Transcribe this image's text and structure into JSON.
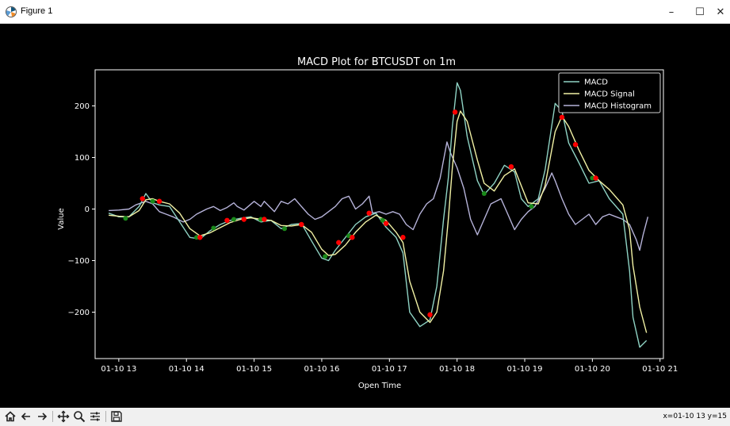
{
  "window": {
    "title": "Figure 1",
    "minimize_glyph": "–",
    "maximize_glyph": "☐",
    "close_glyph": "✕",
    "icon": "matplotlib-figure-icon"
  },
  "toolbar": {
    "buttons": [
      {
        "name": "home-icon"
      },
      {
        "name": "back-arrow-icon"
      },
      {
        "name": "forward-arrow-icon"
      },
      {
        "name": "pan-icon"
      },
      {
        "name": "zoom-icon"
      },
      {
        "name": "configure-subplots-icon"
      },
      {
        "name": "save-icon"
      }
    ],
    "coords": "x=01-10 13 y=15"
  },
  "colors": {
    "macd": "#8fd3c4",
    "signal": "#f2f2a5",
    "histogram": "#b6b3d9",
    "buy_marker": "#1a8a1a",
    "sell_marker": "#ff0000",
    "axes": "#ffffff",
    "background": "#000000"
  },
  "chart_data": {
    "type": "line",
    "title": "MACD Plot for BTCUSDT on 1m",
    "xlabel": "Open Time",
    "ylabel": "Value",
    "xlim": [
      12.65,
      21.05
    ],
    "ylim": [
      -290,
      270
    ],
    "xticks": [
      {
        "value": 13,
        "label": "01-10 13"
      },
      {
        "value": 14,
        "label": "01-10 14"
      },
      {
        "value": 15,
        "label": "01-10 15"
      },
      {
        "value": 16,
        "label": "01-10 16"
      },
      {
        "value": 17,
        "label": "01-10 17"
      },
      {
        "value": 18,
        "label": "01-10 18"
      },
      {
        "value": 19,
        "label": "01-10 19"
      },
      {
        "value": 20,
        "label": "01-10 20"
      },
      {
        "value": 21,
        "label": "01-10 21"
      }
    ],
    "yticks": [
      {
        "value": -200,
        "label": "−200"
      },
      {
        "value": -100,
        "label": "−100"
      },
      {
        "value": 0,
        "label": "0"
      },
      {
        "value": 100,
        "label": "100"
      },
      {
        "value": 200,
        "label": "200"
      }
    ],
    "grid": false,
    "legend_position": "top-right",
    "series": [
      {
        "name": "MACD",
        "color": "#8fd3c4",
        "points": [
          [
            12.85,
            -8
          ],
          [
            13.0,
            -15
          ],
          [
            13.15,
            -15
          ],
          [
            13.3,
            5
          ],
          [
            13.4,
            30
          ],
          [
            13.5,
            12
          ],
          [
            13.6,
            8
          ],
          [
            13.75,
            5
          ],
          [
            13.9,
            -25
          ],
          [
            14.05,
            -55
          ],
          [
            14.2,
            -58
          ],
          [
            14.35,
            -42
          ],
          [
            14.5,
            -30
          ],
          [
            14.65,
            -22
          ],
          [
            14.8,
            -18
          ],
          [
            14.95,
            -15
          ],
          [
            15.1,
            -25
          ],
          [
            15.25,
            -22
          ],
          [
            15.4,
            -38
          ],
          [
            15.55,
            -30
          ],
          [
            15.7,
            -28
          ],
          [
            15.85,
            -62
          ],
          [
            16.0,
            -95
          ],
          [
            16.1,
            -100
          ],
          [
            16.2,
            -80
          ],
          [
            16.35,
            -55
          ],
          [
            16.5,
            -30
          ],
          [
            16.65,
            -15
          ],
          [
            16.8,
            -8
          ],
          [
            16.95,
            -35
          ],
          [
            17.1,
            -55
          ],
          [
            17.2,
            -85
          ],
          [
            17.3,
            -200
          ],
          [
            17.45,
            -228
          ],
          [
            17.6,
            -215
          ],
          [
            17.7,
            -150
          ],
          [
            17.8,
            -20
          ],
          [
            17.87,
            60
          ],
          [
            17.93,
            160
          ],
          [
            18.0,
            245
          ],
          [
            18.05,
            230
          ],
          [
            18.15,
            140
          ],
          [
            18.3,
            55
          ],
          [
            18.4,
            28
          ],
          [
            18.55,
            50
          ],
          [
            18.7,
            85
          ],
          [
            18.85,
            72
          ],
          [
            18.95,
            20
          ],
          [
            19.05,
            5
          ],
          [
            19.2,
            20
          ],
          [
            19.3,
            75
          ],
          [
            19.45,
            205
          ],
          [
            19.55,
            190
          ],
          [
            19.65,
            128
          ],
          [
            19.8,
            90
          ],
          [
            19.95,
            50
          ],
          [
            20.1,
            55
          ],
          [
            20.25,
            20
          ],
          [
            20.45,
            -10
          ],
          [
            20.55,
            -120
          ],
          [
            20.6,
            -210
          ],
          [
            20.7,
            -268
          ],
          [
            20.8,
            -255
          ]
        ]
      },
      {
        "name": "MACD Signal",
        "color": "#f2f2a5",
        "points": [
          [
            12.85,
            -12
          ],
          [
            13.0,
            -14
          ],
          [
            13.15,
            -15
          ],
          [
            13.3,
            -3
          ],
          [
            13.4,
            18
          ],
          [
            13.5,
            20
          ],
          [
            13.6,
            15
          ],
          [
            13.75,
            10
          ],
          [
            13.9,
            -8
          ],
          [
            14.05,
            -38
          ],
          [
            14.2,
            -52
          ],
          [
            14.35,
            -46
          ],
          [
            14.5,
            -36
          ],
          [
            14.65,
            -26
          ],
          [
            14.8,
            -20
          ],
          [
            14.95,
            -17
          ],
          [
            15.1,
            -20
          ],
          [
            15.25,
            -22
          ],
          [
            15.4,
            -32
          ],
          [
            15.55,
            -33
          ],
          [
            15.7,
            -30
          ],
          [
            15.85,
            -45
          ],
          [
            16.0,
            -78
          ],
          [
            16.1,
            -90
          ],
          [
            16.2,
            -88
          ],
          [
            16.35,
            -70
          ],
          [
            16.5,
            -45
          ],
          [
            16.65,
            -25
          ],
          [
            16.8,
            -12
          ],
          [
            16.95,
            -22
          ],
          [
            17.1,
            -45
          ],
          [
            17.2,
            -65
          ],
          [
            17.3,
            -140
          ],
          [
            17.45,
            -200
          ],
          [
            17.6,
            -220
          ],
          [
            17.7,
            -200
          ],
          [
            17.8,
            -120
          ],
          [
            17.87,
            -20
          ],
          [
            17.93,
            80
          ],
          [
            18.0,
            170
          ],
          [
            18.05,
            190
          ],
          [
            18.15,
            170
          ],
          [
            18.3,
            95
          ],
          [
            18.4,
            50
          ],
          [
            18.55,
            35
          ],
          [
            18.7,
            65
          ],
          [
            18.85,
            78
          ],
          [
            18.95,
            45
          ],
          [
            19.05,
            12
          ],
          [
            19.2,
            10
          ],
          [
            19.3,
            45
          ],
          [
            19.45,
            150
          ],
          [
            19.55,
            180
          ],
          [
            19.65,
            160
          ],
          [
            19.8,
            115
          ],
          [
            19.95,
            75
          ],
          [
            20.1,
            55
          ],
          [
            20.25,
            38
          ],
          [
            20.45,
            8
          ],
          [
            20.55,
            -40
          ],
          [
            20.6,
            -110
          ],
          [
            20.7,
            -190
          ],
          [
            20.8,
            -240
          ]
        ]
      },
      {
        "name": "MACD Histogram",
        "color": "#b6b3d9",
        "points": [
          [
            12.85,
            -3
          ],
          [
            13.0,
            -2
          ],
          [
            13.15,
            0
          ],
          [
            13.25,
            8
          ],
          [
            13.4,
            15
          ],
          [
            13.5,
            10
          ],
          [
            13.6,
            -5
          ],
          [
            13.7,
            -10
          ],
          [
            13.8,
            -15
          ],
          [
            13.95,
            -25
          ],
          [
            14.05,
            -20
          ],
          [
            14.15,
            -10
          ],
          [
            14.3,
            0
          ],
          [
            14.4,
            5
          ],
          [
            14.5,
            -3
          ],
          [
            14.6,
            3
          ],
          [
            14.7,
            12
          ],
          [
            14.75,
            5
          ],
          [
            14.85,
            -2
          ],
          [
            15.0,
            15
          ],
          [
            15.1,
            5
          ],
          [
            15.15,
            15
          ],
          [
            15.3,
            -5
          ],
          [
            15.4,
            15
          ],
          [
            15.5,
            10
          ],
          [
            15.6,
            20
          ],
          [
            15.7,
            5
          ],
          [
            15.8,
            -10
          ],
          [
            15.9,
            -20
          ],
          [
            16.0,
            -15
          ],
          [
            16.1,
            -5
          ],
          [
            16.2,
            5
          ],
          [
            16.3,
            20
          ],
          [
            16.4,
            25
          ],
          [
            16.5,
            0
          ],
          [
            16.6,
            10
          ],
          [
            16.7,
            25
          ],
          [
            16.75,
            -8
          ],
          [
            16.85,
            -5
          ],
          [
            16.95,
            -10
          ],
          [
            17.05,
            -5
          ],
          [
            17.15,
            -10
          ],
          [
            17.25,
            -30
          ],
          [
            17.35,
            -40
          ],
          [
            17.45,
            -10
          ],
          [
            17.55,
            10
          ],
          [
            17.65,
            20
          ],
          [
            17.75,
            60
          ],
          [
            17.85,
            130
          ],
          [
            17.9,
            110
          ],
          [
            18.0,
            80
          ],
          [
            18.1,
            40
          ],
          [
            18.2,
            -20
          ],
          [
            18.3,
            -50
          ],
          [
            18.4,
            -20
          ],
          [
            18.5,
            10
          ],
          [
            18.65,
            20
          ],
          [
            18.75,
            -10
          ],
          [
            18.85,
            -40
          ],
          [
            18.95,
            -20
          ],
          [
            19.05,
            -5
          ],
          [
            19.15,
            5
          ],
          [
            19.3,
            40
          ],
          [
            19.4,
            70
          ],
          [
            19.45,
            55
          ],
          [
            19.55,
            20
          ],
          [
            19.65,
            -10
          ],
          [
            19.75,
            -30
          ],
          [
            19.85,
            -20
          ],
          [
            19.95,
            -10
          ],
          [
            20.05,
            -30
          ],
          [
            20.15,
            -15
          ],
          [
            20.25,
            -10
          ],
          [
            20.35,
            -15
          ],
          [
            20.45,
            -20
          ],
          [
            20.55,
            -30
          ],
          [
            20.65,
            -60
          ],
          [
            20.7,
            -80
          ],
          [
            20.75,
            -50
          ],
          [
            20.82,
            -15
          ]
        ]
      }
    ],
    "buy_signals": [
      [
        13.1,
        -18
      ],
      [
        13.5,
        15
      ],
      [
        14.15,
        -55
      ],
      [
        14.4,
        -37
      ],
      [
        14.7,
        -20
      ],
      [
        15.1,
        -20
      ],
      [
        15.45,
        -38
      ],
      [
        16.05,
        -92
      ],
      [
        16.4,
        -52
      ],
      [
        16.9,
        -22
      ],
      [
        17.6,
        -205
      ],
      [
        18.4,
        30
      ],
      [
        19.1,
        5
      ],
      [
        20.0,
        60
      ]
    ],
    "sell_signals": [
      [
        13.35,
        20
      ],
      [
        13.6,
        15
      ],
      [
        14.2,
        -55
      ],
      [
        14.6,
        -22
      ],
      [
        14.85,
        -20
      ],
      [
        15.15,
        -20
      ],
      [
        15.7,
        -30
      ],
      [
        16.25,
        -65
      ],
      [
        16.45,
        -55
      ],
      [
        16.7,
        -8
      ],
      [
        16.95,
        -28
      ],
      [
        17.2,
        -55
      ],
      [
        17.6,
        -205
      ],
      [
        17.97,
        188
      ],
      [
        18.8,
        82
      ],
      [
        19.55,
        178
      ],
      [
        19.75,
        125
      ],
      [
        20.05,
        60
      ]
    ]
  }
}
